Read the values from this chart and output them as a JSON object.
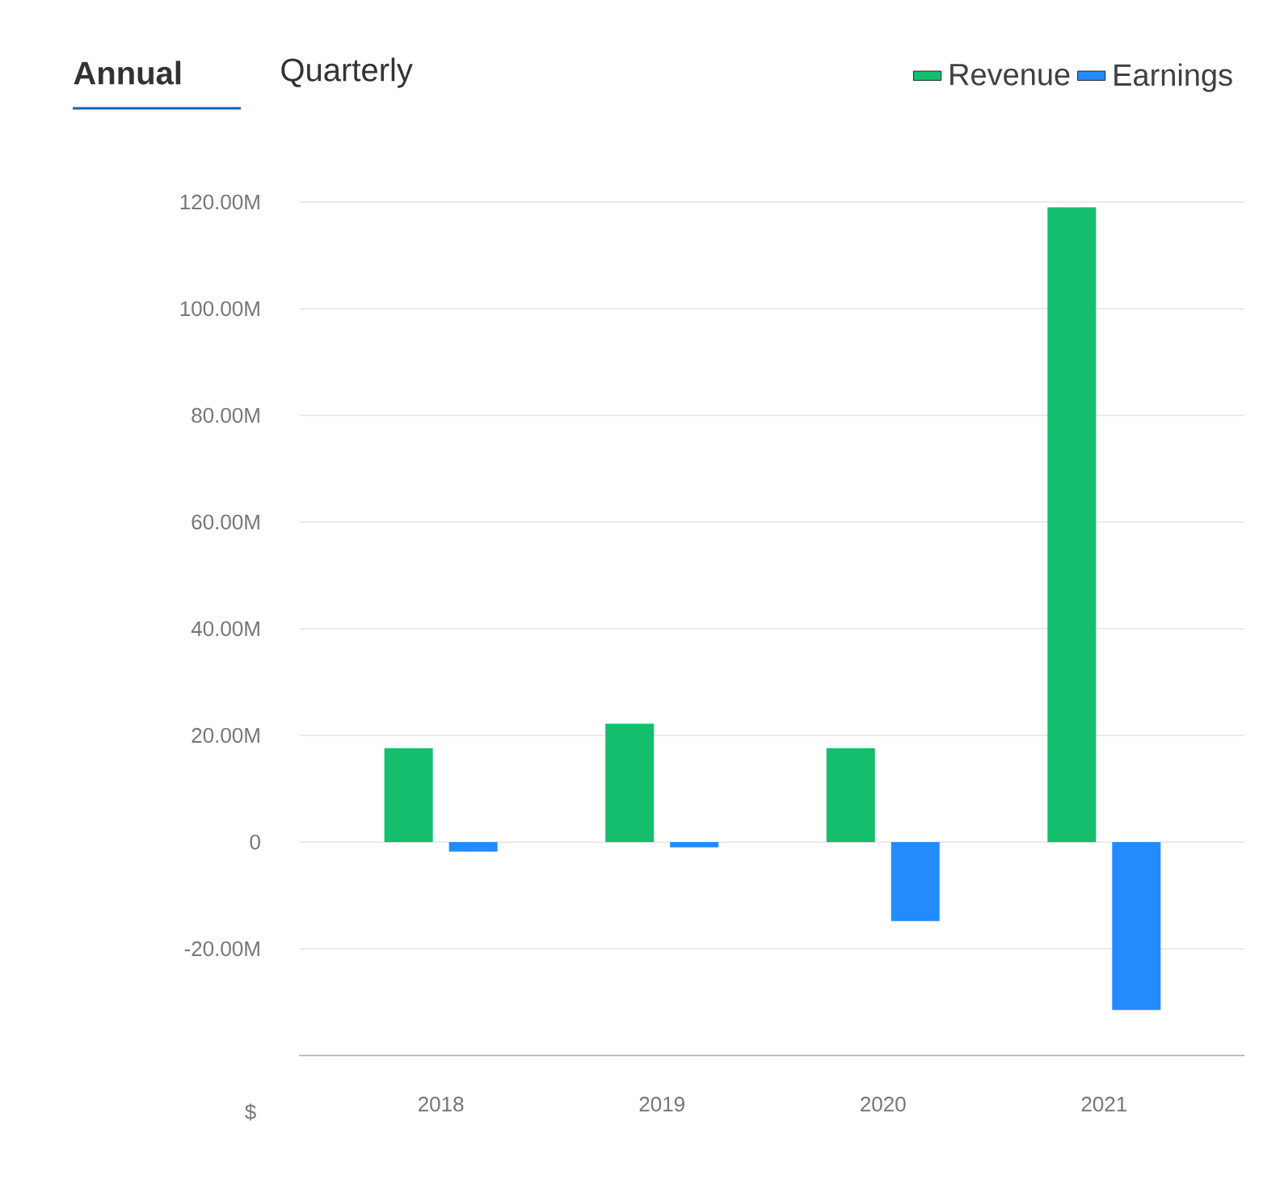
{
  "chart_data": {
    "type": "bar",
    "annotations": [
      "Annual",
      "Quarterly",
      "$"
    ],
    "categories": [
      "2018",
      "2019",
      "2020",
      "2021"
    ],
    "series": [
      {
        "name": "Revenue",
        "color": "#13bf6c",
        "values": [
          17.6,
          22.2,
          17.6,
          119
        ]
      },
      {
        "name": "Earnings",
        "color": "#238bfc",
        "values": [
          -1.8,
          -1.0,
          -14.8,
          -31.5
        ]
      }
    ],
    "ylim": [
      -40,
      120
    ],
    "yticks": [
      {
        "value": -20,
        "label": "-20.00M"
      },
      0,
      {
        "value": 20,
        "label": "20.00M"
      },
      {
        "value": 40,
        "label": "40.00M"
      },
      {
        "value": 60,
        "label": "60.00M"
      },
      {
        "value": 80,
        "label": "80.00M"
      },
      {
        "value": 100,
        "label": "100.00M"
      },
      {
        "value": 120,
        "label": "120.00M"
      }
    ],
    "grid": "y",
    "legend": "top right"
  }
}
